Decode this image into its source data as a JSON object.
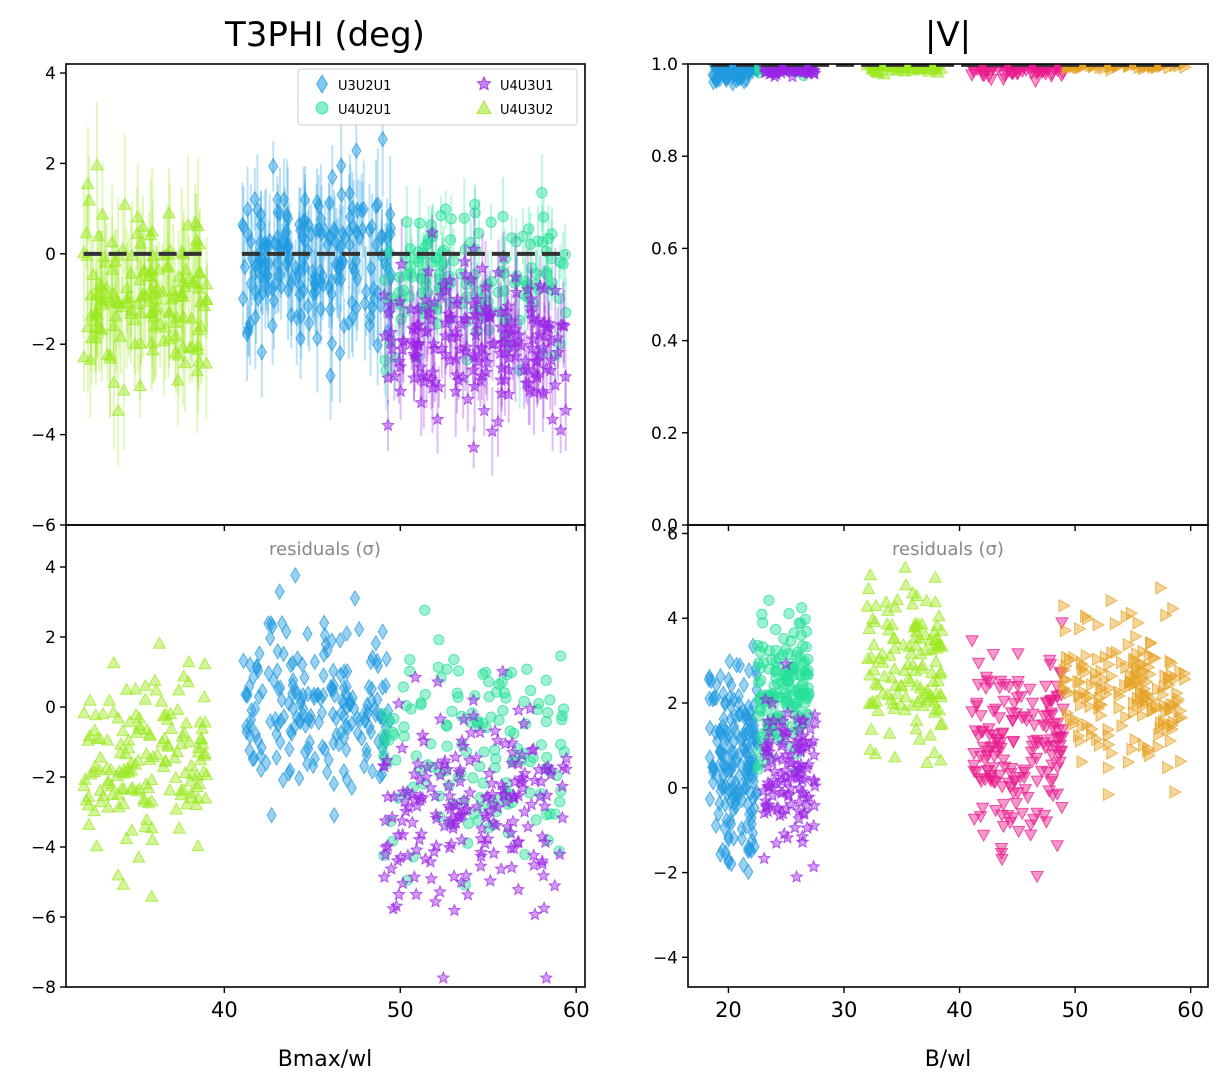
{
  "figure": {
    "background": "#ffffff"
  },
  "chart_data": [
    {
      "id": "t3phi_data",
      "type": "scatter",
      "title": "T3PHI (deg)",
      "xlabel": "",
      "ylabel": "",
      "xlim": [
        31,
        60.5
      ],
      "ylim": [
        -6,
        4.2
      ],
      "xticks": [
        40,
        50,
        60
      ],
      "yticks": [
        -6,
        -4,
        -2,
        0,
        2,
        4
      ],
      "ytick_labels": [
        "−6",
        "−4",
        "−2",
        "0",
        "2",
        "4"
      ],
      "show_xtick_labels": false,
      "legend": {
        "position": "top-right",
        "columns": 2,
        "entries": [
          {
            "label": "U3U2U1",
            "marker": "diamond",
            "color": "#1f9ae0"
          },
          {
            "label": "U4U3U1",
            "marker": "star",
            "color": "#9b23e6"
          },
          {
            "label": "U4U2U1",
            "marker": "circle",
            "color": "#25e09a"
          },
          {
            "label": "U4U3U2",
            "marker": "triangle-up",
            "color": "#9be81e"
          }
        ]
      },
      "series": [
        {
          "name": "U4U3U2",
          "marker": "triangle-up",
          "color": "#9be81e",
          "x_range": [
            32,
            39
          ],
          "y_center": -1.0,
          "y_spread": 0.9,
          "err": 1.2,
          "count": 160
        },
        {
          "name": "U3U2U1",
          "marker": "diamond",
          "color": "#1f9ae0",
          "x_range": [
            41,
            49.5
          ],
          "y_center": -0.2,
          "y_spread": 0.9,
          "err": 1.0,
          "count": 200
        },
        {
          "name": "U4U2U1",
          "marker": "circle",
          "color": "#25e09a",
          "x_range": [
            49,
            59.5
          ],
          "y_center": -0.6,
          "y_spread": 0.8,
          "err": 0.7,
          "count": 150
        },
        {
          "name": "U4U3U1",
          "marker": "star",
          "color": "#9b23e6",
          "x_range": [
            49,
            59.5
          ],
          "y_center": -1.9,
          "y_spread": 0.8,
          "err": 0.8,
          "count": 200
        }
      ],
      "model_lines": [
        {
          "x": [
            32,
            39
          ],
          "y": 0
        },
        {
          "x": [
            41,
            59.5
          ],
          "y": 0
        }
      ],
      "model_line_color": "#333333"
    },
    {
      "id": "t3phi_residuals",
      "type": "scatter",
      "annotation": "residuals (σ)",
      "xlabel": "Bmax/wl",
      "xlim": [
        31,
        60.5
      ],
      "ylim": [
        -8,
        5.2
      ],
      "xticks": [
        40,
        50,
        60
      ],
      "yticks": [
        -8,
        -6,
        -4,
        -2,
        0,
        2,
        4
      ],
      "ytick_labels": [
        "−8",
        "−6",
        "−4",
        "−2",
        "0",
        "2",
        "4"
      ],
      "series": [
        {
          "name": "U4U3U2",
          "marker": "triangle-up",
          "color": "#9be81e",
          "x_range": [
            32,
            39
          ],
          "y_center": -1.5,
          "y_spread": 1.3,
          "count": 160
        },
        {
          "name": "U3U2U1",
          "marker": "diamond",
          "color": "#1f9ae0",
          "x_range": [
            41,
            49.5
          ],
          "y_center": 0.0,
          "y_spread": 1.4,
          "count": 200
        },
        {
          "name": "U4U2U1",
          "marker": "circle",
          "color": "#25e09a",
          "x_range": [
            49,
            59.5
          ],
          "y_center": -1.2,
          "y_spread": 1.6,
          "count": 150
        },
        {
          "name": "U4U3U1",
          "marker": "star",
          "color": "#9b23e6",
          "x_range": [
            49,
            59.5
          ],
          "y_center": -3.0,
          "y_spread": 1.5,
          "count": 200
        }
      ]
    },
    {
      "id": "v_data",
      "type": "scatter",
      "title": "|V|",
      "xlim": [
        16.5,
        61.5
      ],
      "ylim": [
        0,
        1.0
      ],
      "xticks": [
        20,
        30,
        40,
        50,
        60
      ],
      "yticks": [
        0,
        0.2,
        0.4,
        0.6,
        0.8,
        1.0
      ],
      "ytick_labels": [
        "0.0",
        "0.2",
        "0.4",
        "0.6",
        "0.8",
        "1.0"
      ],
      "show_xtick_labels": false,
      "series": [
        {
          "name": "blue",
          "marker": "diamond",
          "color": "#1f9ae0",
          "x_range": [
            18.5,
            22.5
          ],
          "y_center": 0.985,
          "y_spread": 0.012,
          "count": 80
        },
        {
          "name": "green",
          "marker": "circle",
          "color": "#25e09a",
          "x_range": [
            22.5,
            27
          ],
          "y_center": 0.992,
          "y_spread": 0.006,
          "count": 70
        },
        {
          "name": "purple",
          "marker": "star",
          "color": "#9b23e6",
          "x_range": [
            23,
            27.5
          ],
          "y_center": 0.988,
          "y_spread": 0.007,
          "count": 70
        },
        {
          "name": "lime",
          "marker": "triangle-up",
          "color": "#9be81e",
          "x_range": [
            32,
            38.5
          ],
          "y_center": 0.993,
          "y_spread": 0.006,
          "count": 60
        },
        {
          "name": "pink",
          "marker": "triangle-down",
          "color": "#e8198b",
          "x_range": [
            41,
            49
          ],
          "y_center": 0.99,
          "y_spread": 0.01,
          "count": 90
        },
        {
          "name": "orange",
          "marker": "triangle-right",
          "color": "#e6a123",
          "x_range": [
            49,
            59.5
          ],
          "y_center": 0.997,
          "y_spread": 0.003,
          "count": 70
        }
      ],
      "model_lines": [
        {
          "x": [
            18.5,
            59.5
          ],
          "y": 0.998
        }
      ],
      "model_line_color": "#333333"
    },
    {
      "id": "v_residuals",
      "type": "scatter",
      "annotation": "residuals (σ)",
      "xlabel": "B/wl",
      "xlim": [
        16.5,
        61.5
      ],
      "ylim": [
        -4.7,
        6.2
      ],
      "xticks": [
        20,
        30,
        40,
        50,
        60
      ],
      "yticks": [
        -4,
        -2,
        0,
        2,
        4,
        6
      ],
      "ytick_labels": [
        "−4",
        "−2",
        "0",
        "2",
        "4",
        "6"
      ],
      "series": [
        {
          "name": "blue",
          "marker": "diamond",
          "color": "#1f9ae0",
          "x_range": [
            18.3,
            22.5
          ],
          "y_center": 0.5,
          "y_spread": 1.2,
          "count": 180
        },
        {
          "name": "green",
          "marker": "circle",
          "color": "#25e09a",
          "x_range": [
            22.5,
            27
          ],
          "y_center": 2.3,
          "y_spread": 0.8,
          "count": 160
        },
        {
          "name": "purple",
          "marker": "star",
          "color": "#9b23e6",
          "x_range": [
            23,
            27.5
          ],
          "y_center": 0.3,
          "y_spread": 0.8,
          "count": 120
        },
        {
          "name": "lime",
          "marker": "triangle-up",
          "color": "#9be81e",
          "x_range": [
            32,
            38.5
          ],
          "y_center": 3.0,
          "y_spread": 1.0,
          "count": 130
        },
        {
          "name": "pink",
          "marker": "triangle-down",
          "color": "#e8198b",
          "x_range": [
            41,
            49
          ],
          "y_center": 0.8,
          "y_spread": 1.0,
          "count": 180
        },
        {
          "name": "orange",
          "marker": "triangle-right",
          "color": "#e6a123",
          "x_range": [
            49,
            59.5
          ],
          "y_center": 2.3,
          "y_spread": 0.9,
          "count": 180
        }
      ]
    }
  ]
}
